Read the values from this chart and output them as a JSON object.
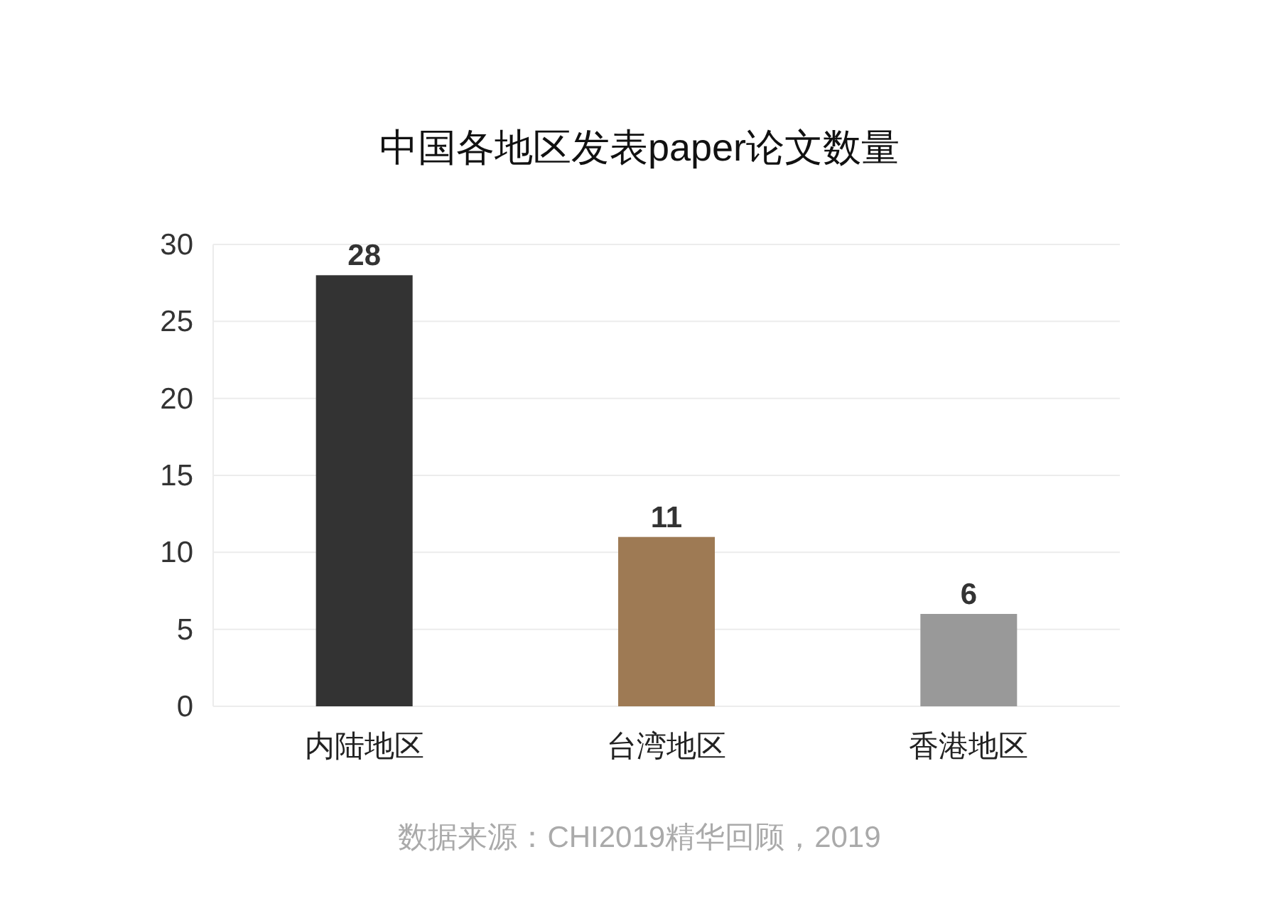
{
  "chart_data": {
    "type": "bar",
    "title": "中国各地区发表paper论文数量",
    "categories": [
      "内陆地区",
      "台湾地区",
      "香港地区"
    ],
    "values": [
      28,
      11,
      6
    ],
    "colors": [
      "#333333",
      "#9e7a54",
      "#999999"
    ],
    "ylim": [
      0,
      30
    ],
    "yticks": [
      0,
      5,
      10,
      15,
      20,
      25,
      30
    ],
    "grid": "y",
    "data_labels": true,
    "annotations": [
      "数据来源：CHI2019精华回顾，2019"
    ]
  }
}
